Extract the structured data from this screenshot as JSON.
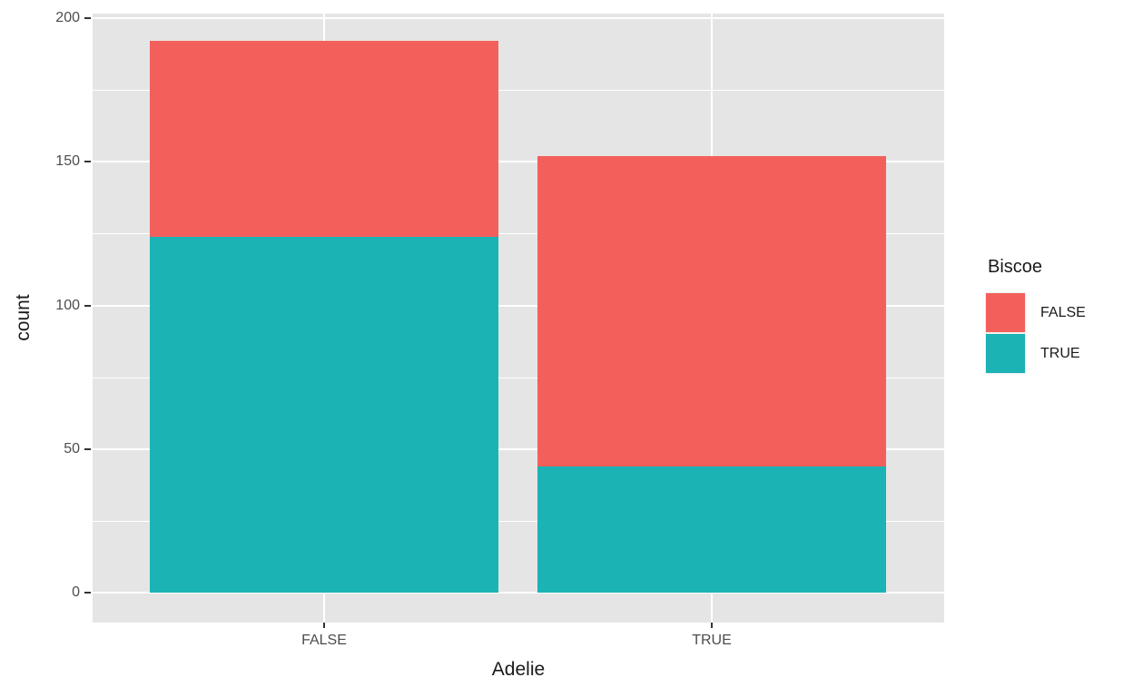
{
  "chart_data": {
    "type": "bar",
    "stacked": true,
    "orientation": "vertical",
    "categories": [
      "FALSE",
      "TRUE"
    ],
    "series": [
      {
        "name": "FALSE",
        "color": "#F3605C",
        "values": [
          68,
          108
        ]
      },
      {
        "name": "TRUE",
        "color": "#1BB3B4",
        "values": [
          124,
          44
        ]
      }
    ],
    "stack_order_bottom_to_top": [
      "TRUE",
      "FALSE"
    ],
    "xlabel": "Adelie",
    "ylabel": "count",
    "ylim": [
      0,
      200
    ],
    "y_ticks": [
      0,
      50,
      100,
      150,
      200
    ],
    "grid": {
      "major": true,
      "minor": true,
      "color": "#FFFFFF"
    },
    "panel_background": "#E5E5E5",
    "axis_text_color": "#4D4D4D",
    "axis_title_color": "#1A1A1A",
    "legend": {
      "title": "Biscoe",
      "position": "right",
      "entries": [
        "FALSE",
        "TRUE"
      ]
    }
  }
}
